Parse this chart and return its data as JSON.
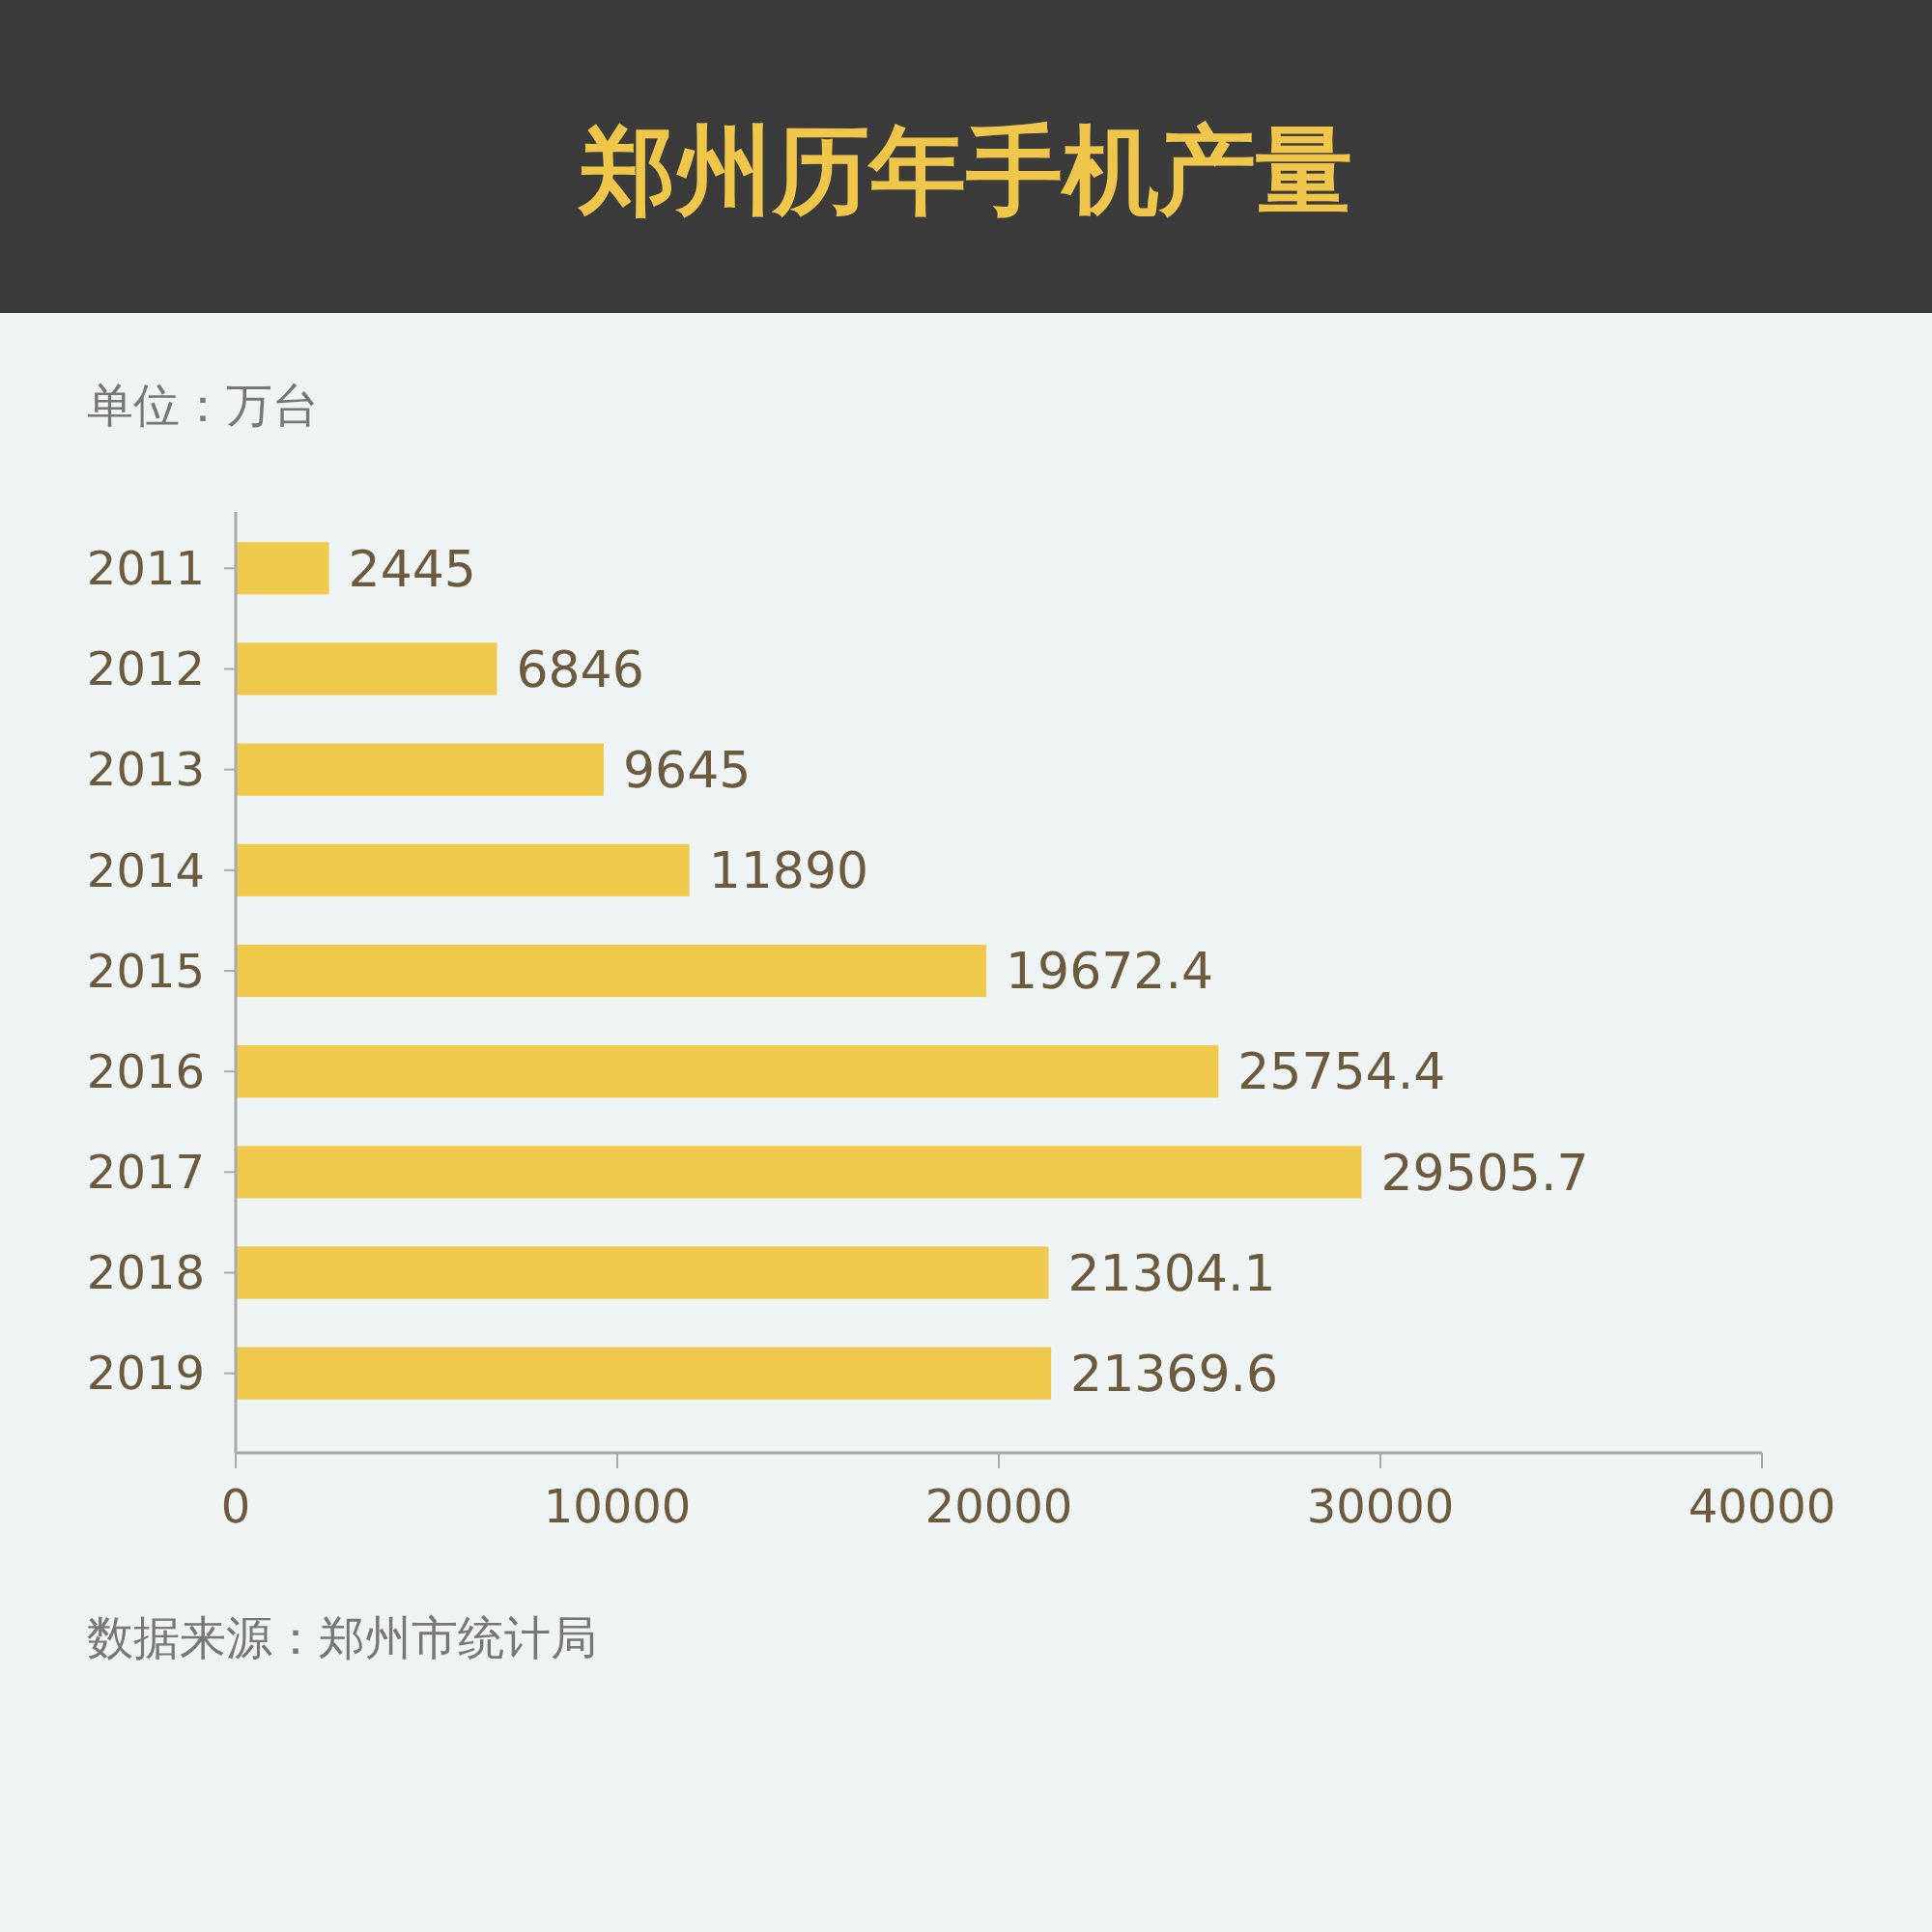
{
  "chart_data": {
    "type": "bar",
    "orientation": "horizontal",
    "title": "郑州历年手机产量",
    "ylabel": "单位：万台",
    "categories": [
      "2011",
      "2012",
      "2013",
      "2014",
      "2015",
      "2016",
      "2017",
      "2018",
      "2019"
    ],
    "values": [
      2445,
      6846,
      9645,
      11890,
      19672.4,
      25754.4,
      29505.7,
      21304.1,
      21369.6
    ],
    "color": "#efc94c",
    "xlim": [
      0,
      40000
    ],
    "xticks": [
      0,
      10000,
      20000,
      30000,
      40000
    ],
    "data_labels": true,
    "grid": false,
    "annotations": [
      "数据来源：郑州市统计局"
    ]
  }
}
